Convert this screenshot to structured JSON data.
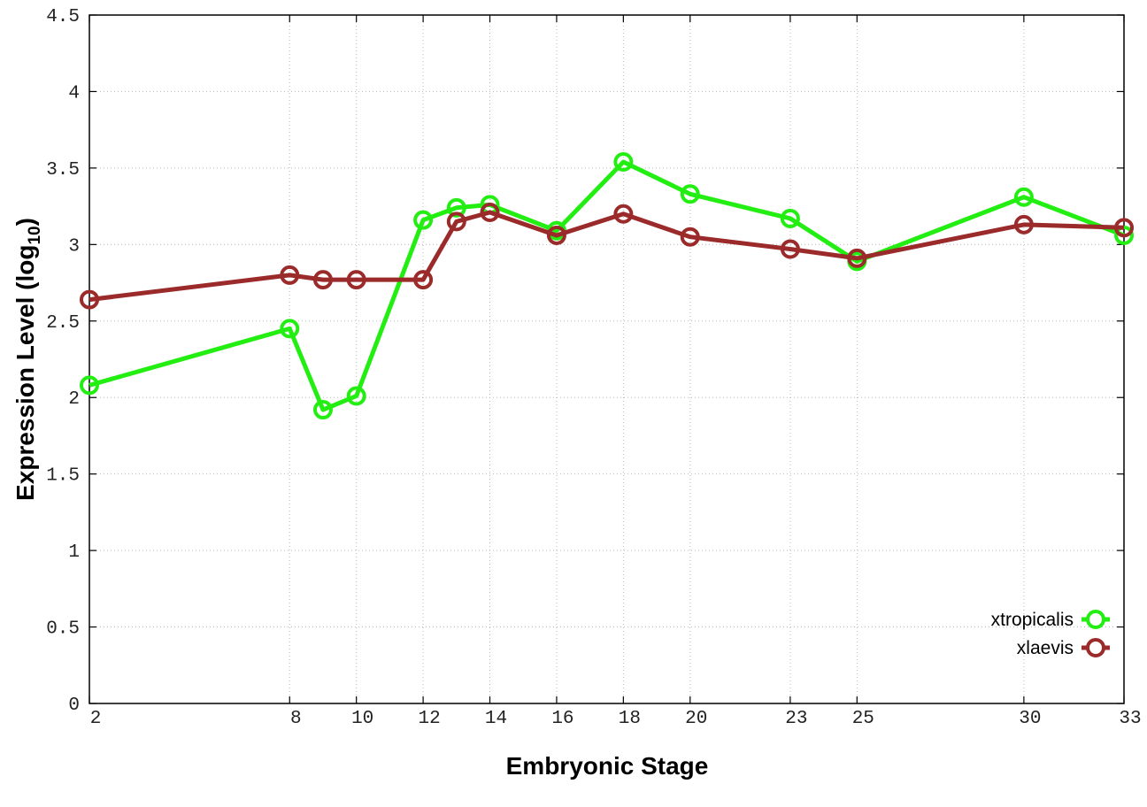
{
  "chart_data": {
    "type": "line",
    "title": "",
    "xlabel": "Embryonic Stage",
    "ylabel_main": "Expression Level (log",
    "ylabel_sub": "10",
    "ylabel_close": ")",
    "x": [
      2,
      8,
      9,
      10,
      12,
      13,
      14,
      16,
      18,
      20,
      23,
      25,
      30,
      33
    ],
    "xticks": [
      "2",
      "8",
      "10",
      "12",
      "14",
      "16",
      "18",
      "20",
      "23",
      "25",
      "30",
      "33"
    ],
    "xtick_values": [
      2,
      8,
      10,
      12,
      14,
      16,
      18,
      20,
      23,
      25,
      30,
      33
    ],
    "xlim": [
      2,
      33
    ],
    "yticks": [
      "0",
      "0.5",
      "1",
      "1.5",
      "2",
      "2.5",
      "3",
      "3.5",
      "4",
      "4.5"
    ],
    "ytick_values": [
      0,
      0.5,
      1,
      1.5,
      2,
      2.5,
      3,
      3.5,
      4,
      4.5
    ],
    "ylim": [
      0,
      4.5
    ],
    "grid": true,
    "legend_position": "bottom-right",
    "series": [
      {
        "name": "xtropicalis",
        "color": "#22ee11",
        "marker": "open-circle",
        "values": [
          2.08,
          2.45,
          1.92,
          2.01,
          3.16,
          3.24,
          3.26,
          3.09,
          3.54,
          3.33,
          3.17,
          2.89,
          3.31,
          3.06
        ]
      },
      {
        "name": "xlaevis",
        "color": "#9b2a2a",
        "marker": "open-circle",
        "values": [
          2.64,
          2.8,
          2.77,
          2.77,
          2.77,
          3.15,
          3.21,
          3.06,
          3.2,
          3.05,
          2.97,
          2.91,
          3.13,
          3.11
        ]
      }
    ]
  }
}
